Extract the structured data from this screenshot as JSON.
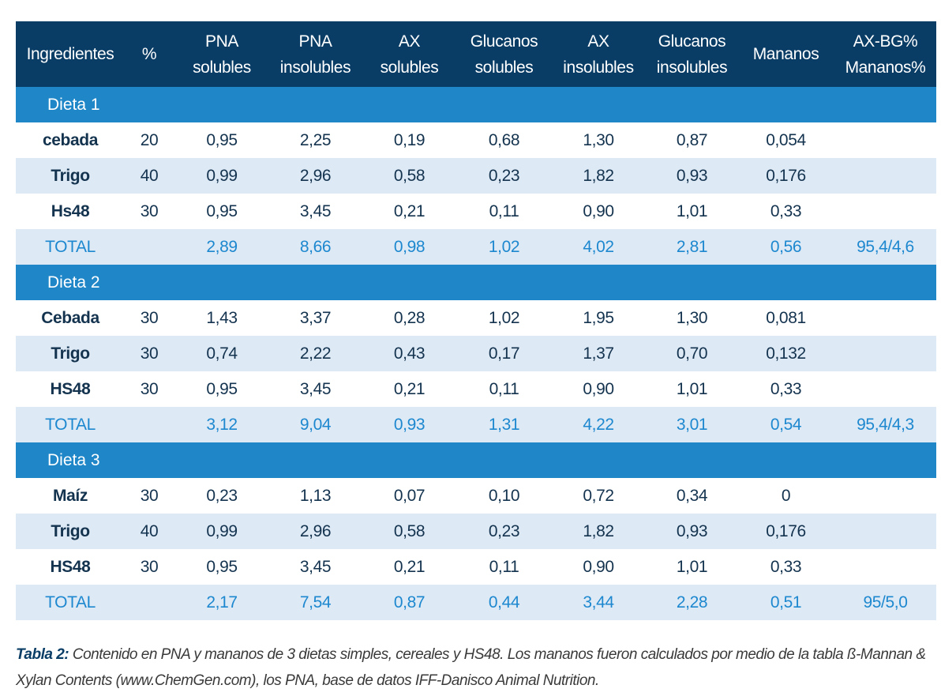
{
  "headers": [
    [
      "Ingredientes"
    ],
    [
      "%"
    ],
    [
      "PNA",
      "solubles"
    ],
    [
      "PNA",
      "insolubles"
    ],
    [
      "AX",
      "solubles"
    ],
    [
      "Glucanos",
      "solubles"
    ],
    [
      "AX",
      "insolubles"
    ],
    [
      "Glucanos",
      "insolubles"
    ],
    [
      "Mananos"
    ],
    [
      "AX-BG%",
      "Mananos%"
    ]
  ],
  "diets": [
    {
      "label": "Dieta 1",
      "rows": [
        [
          "cebada",
          "20",
          "0,95",
          "2,25",
          "0,19",
          "0,68",
          "1,30",
          "0,87",
          "0,054",
          ""
        ],
        [
          "Trigo",
          "40",
          "0,99",
          "2,96",
          "0,58",
          "0,23",
          "1,82",
          "0,93",
          "0,176",
          ""
        ],
        [
          "Hs48",
          "30",
          "0,95",
          "3,45",
          "0,21",
          "0,11",
          "0,90",
          "1,01",
          "0,33",
          ""
        ]
      ],
      "total": [
        "TOTAL",
        "",
        "2,89",
        "8,66",
        "0,98",
        "1,02",
        "4,02",
        "2,81",
        "0,56",
        "95,4/4,6"
      ]
    },
    {
      "label": "Dieta 2",
      "rows": [
        [
          "Cebada",
          "30",
          "1,43",
          "3,37",
          "0,28",
          "1,02",
          "1,95",
          "1,30",
          "0,081",
          ""
        ],
        [
          "Trigo",
          "30",
          "0,74",
          "2,22",
          "0,43",
          "0,17",
          "1,37",
          "0,70",
          "0,132",
          ""
        ],
        [
          "HS48",
          "30",
          "0,95",
          "3,45",
          "0,21",
          "0,11",
          "0,90",
          "1,01",
          "0,33",
          ""
        ]
      ],
      "total": [
        "TOTAL",
        "",
        "3,12",
        "9,04",
        "0,93",
        "1,31",
        "4,22",
        "3,01",
        "0,54",
        "95,4/4,3"
      ]
    },
    {
      "label": "Dieta 3",
      "rows": [
        [
          "Maíz",
          "30",
          "0,23",
          "1,13",
          "0,07",
          "0,10",
          "0,72",
          "0,34",
          "0",
          ""
        ],
        [
          "Trigo",
          "40",
          "0,99",
          "2,96",
          "0,58",
          "0,23",
          "1,82",
          "0,93",
          "0,176",
          ""
        ],
        [
          "HS48",
          "30",
          "0,95",
          "3,45",
          "0,21",
          "0,11",
          "0,90",
          "1,01",
          "0,33",
          ""
        ]
      ],
      "total": [
        "TOTAL",
        "",
        "2,17",
        "7,54",
        "0,87",
        "0,44",
        "3,44",
        "2,28",
        "0,51",
        "95/5,0"
      ]
    }
  ],
  "caption": {
    "lead": "Tabla 2:",
    "text": " Contenido en PNA y mananos de 3 dietas simples, cereales y HS48. Los mananos fueron calculados por medio de la tabla ß-Mannan & Xylan Contents (www.ChemGen.com), los PNA, base de datos IFF-Danisco Animal Nutrition."
  },
  "colors": {
    "header_bg": "#0a3d66",
    "section_bg": "#1f86c8",
    "alt_row_bg": "#dde9f5",
    "total_text": "#1d88cf",
    "body_text": "#14334f"
  }
}
